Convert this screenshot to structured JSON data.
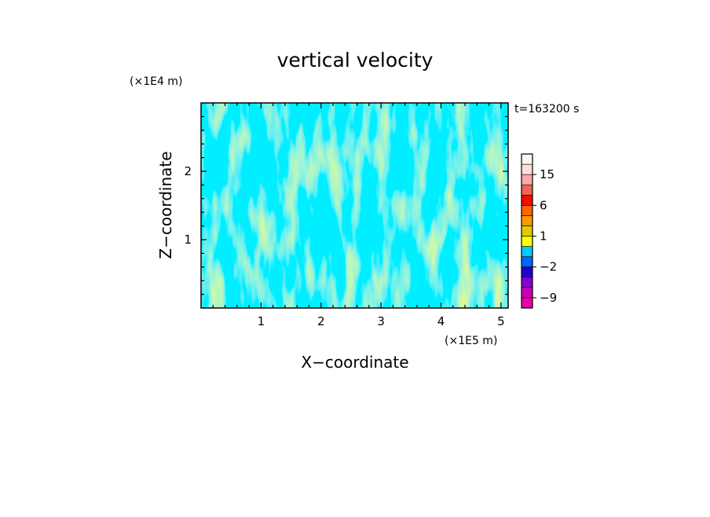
{
  "chart_data": {
    "type": "heatmap",
    "title": "vertical velocity",
    "xlabel": "X−coordinate",
    "ylabel": "Z−coordinate",
    "x_unit": "(×1E5 m)",
    "y_unit": "(×1E4 m)",
    "time_label": "t=163200 s",
    "xlim": [
      0,
      5.12
    ],
    "ylim": [
      0,
      3.0
    ],
    "xticks": [
      1,
      2,
      3,
      4,
      5
    ],
    "yticks": [
      1,
      2
    ],
    "xtick_labels": [
      "1",
      "2",
      "3",
      "4",
      "5"
    ],
    "ytick_labels": [
      "1",
      "2"
    ],
    "field_colors": {
      "positive": "#ffff00",
      "negative": "#00eeff"
    },
    "colorbar": {
      "levels": [
        -12,
        -9,
        -6,
        -4,
        -2,
        -1,
        0,
        1,
        2,
        4,
        6,
        9,
        12,
        15,
        18,
        24
      ],
      "colors": [
        "#ee00aa",
        "#cc00bb",
        "#8800cc",
        "#2200cc",
        "#0066ff",
        "#00ccff",
        "#ffff00",
        "#ddcc00",
        "#ff9900",
        "#ff6600",
        "#ee1100",
        "#ee6655",
        "#ffaaaa",
        "#ffdddd",
        "#fff4f2"
      ],
      "labels": [
        {
          "value": -9,
          "text": "−9"
        },
        {
          "value": -2,
          "text": "−2"
        },
        {
          "value": 1,
          "text": "1"
        },
        {
          "value": 6,
          "text": "6"
        },
        {
          "value": 15,
          "text": "15"
        }
      ]
    }
  }
}
